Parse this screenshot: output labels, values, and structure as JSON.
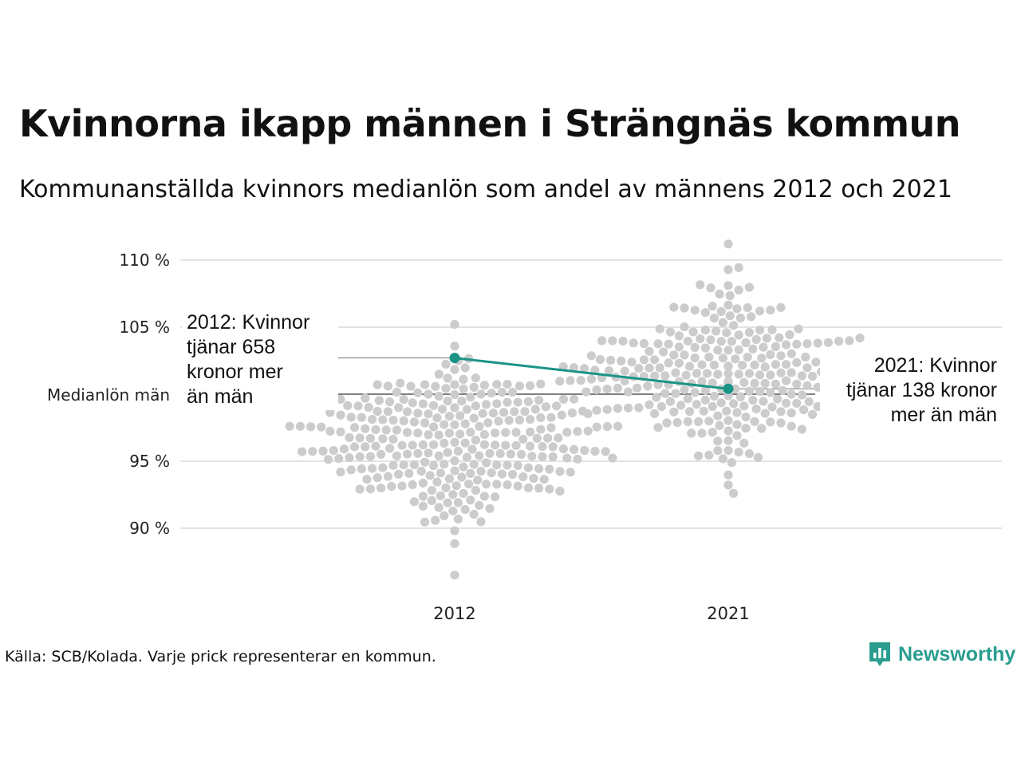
{
  "title": "Kvinnorna ikapp männen i Strängnäs kommun",
  "subtitle": "Kommunanställda kvinnors medianlön som andel av männens 2012 och 2021",
  "source": "Källa: SCB/Kolada. Varje prick representerar en kommun.",
  "brand": {
    "name": "Newsworthy",
    "color": "#2a9d8f",
    "icon": "newsworthy-chart-logo-icon"
  },
  "colors": {
    "dots": "#cccccc",
    "highlight": "#1a9485",
    "grid": "#e3e3e3",
    "reference": "#333333"
  },
  "chart_data": {
    "type": "scatter",
    "variant": "beeswarm",
    "title": "Kvinnorna ikapp männen i Strängnäs kommun",
    "subtitle": "Kommunanställda kvinnors medianlön som andel av männens 2012 och 2021",
    "categories": [
      "2012",
      "2021"
    ],
    "ylim": [
      85.5,
      111.5
    ],
    "y_ticks": [
      {
        "value": 90,
        "label": "90 %"
      },
      {
        "value": 95,
        "label": "95 %"
      },
      {
        "value": 105,
        "label": "105 %"
      },
      {
        "value": 110,
        "label": "110 %"
      }
    ],
    "reference_line": {
      "value": 100,
      "label": "Medianlön män"
    },
    "grid": true,
    "highlight": {
      "name": "Strängnäs kommun",
      "points": [
        {
          "category": "2012",
          "value": 102.7
        },
        {
          "category": "2021",
          "value": 100.4
        }
      ]
    },
    "annotations": [
      {
        "category": "2012",
        "lines": [
          "2012: Kvinnor",
          "tjänar 658",
          "kronor mer",
          "än män"
        ]
      },
      {
        "category": "2021",
        "lines": [
          "2021: Kvinnor",
          "tjänar 138 kronor",
          "mer än män"
        ]
      }
    ],
    "distributions": [
      {
        "category": "2012",
        "count": 290,
        "min": 86.5,
        "max": 105.2,
        "median": 96.4
      },
      {
        "category": "2021",
        "count": 290,
        "min": 92.6,
        "max": 111.2,
        "median": 101.5
      }
    ]
  }
}
